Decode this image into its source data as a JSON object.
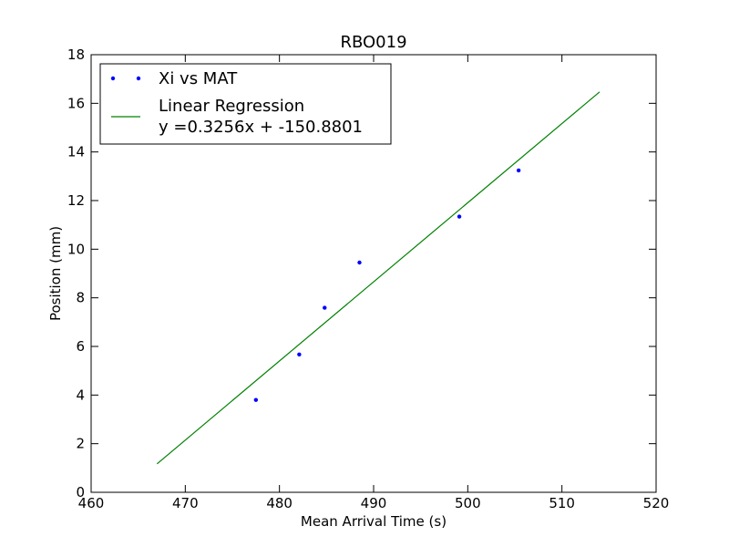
{
  "chart_data": {
    "type": "scatter",
    "title": "RBO019",
    "xlabel": "Mean Arrival Time (s)",
    "ylabel": "Position (mm)",
    "xlim": [
      460,
      520
    ],
    "ylim": [
      0,
      18
    ],
    "xticks": [
      460,
      470,
      480,
      490,
      500,
      510,
      520
    ],
    "yticks": [
      0,
      2,
      4,
      6,
      8,
      10,
      12,
      14,
      16,
      18
    ],
    "grid": false,
    "legend_position": "top-left",
    "series": [
      {
        "name": "Xi vs MAT",
        "kind": "scatter",
        "color": "#0000ff",
        "x": [
          477.5,
          482.1,
          484.8,
          488.5,
          499.1,
          505.4
        ],
        "y": [
          3.8,
          5.67,
          7.59,
          9.45,
          11.34,
          13.24
        ]
      },
      {
        "name": "Linear Regression",
        "kind": "line",
        "color": "#008000",
        "equation": "y =0.3256x + -150.8801",
        "x": [
          467,
          514
        ],
        "y": [
          1.17,
          16.47
        ]
      }
    ]
  }
}
